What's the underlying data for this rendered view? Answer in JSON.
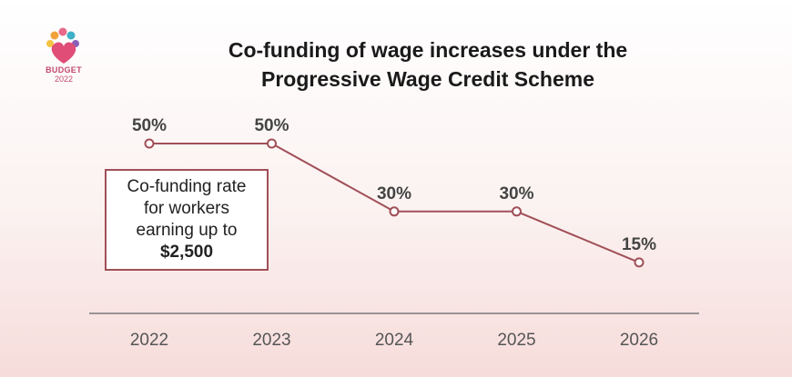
{
  "logo": {
    "text": "BUDGET",
    "year": "2022"
  },
  "chart_data": {
    "type": "line",
    "title_lines": [
      "Co-funding of wage increases under the",
      "Progressive Wage Credit Scheme"
    ],
    "categories": [
      "2022",
      "2023",
      "2024",
      "2025",
      "2026"
    ],
    "values": [
      50,
      50,
      30,
      30,
      15
    ],
    "value_labels": [
      "50%",
      "50%",
      "30%",
      "30%",
      "15%"
    ],
    "annotation": {
      "lines": [
        "Co-funding rate",
        "for workers",
        "earning up to"
      ],
      "emphasis": "$2,500"
    },
    "ylim": [
      0,
      60
    ],
    "grid": false,
    "line_color": "#a14f57",
    "axis_color": "#7a7a7a"
  }
}
